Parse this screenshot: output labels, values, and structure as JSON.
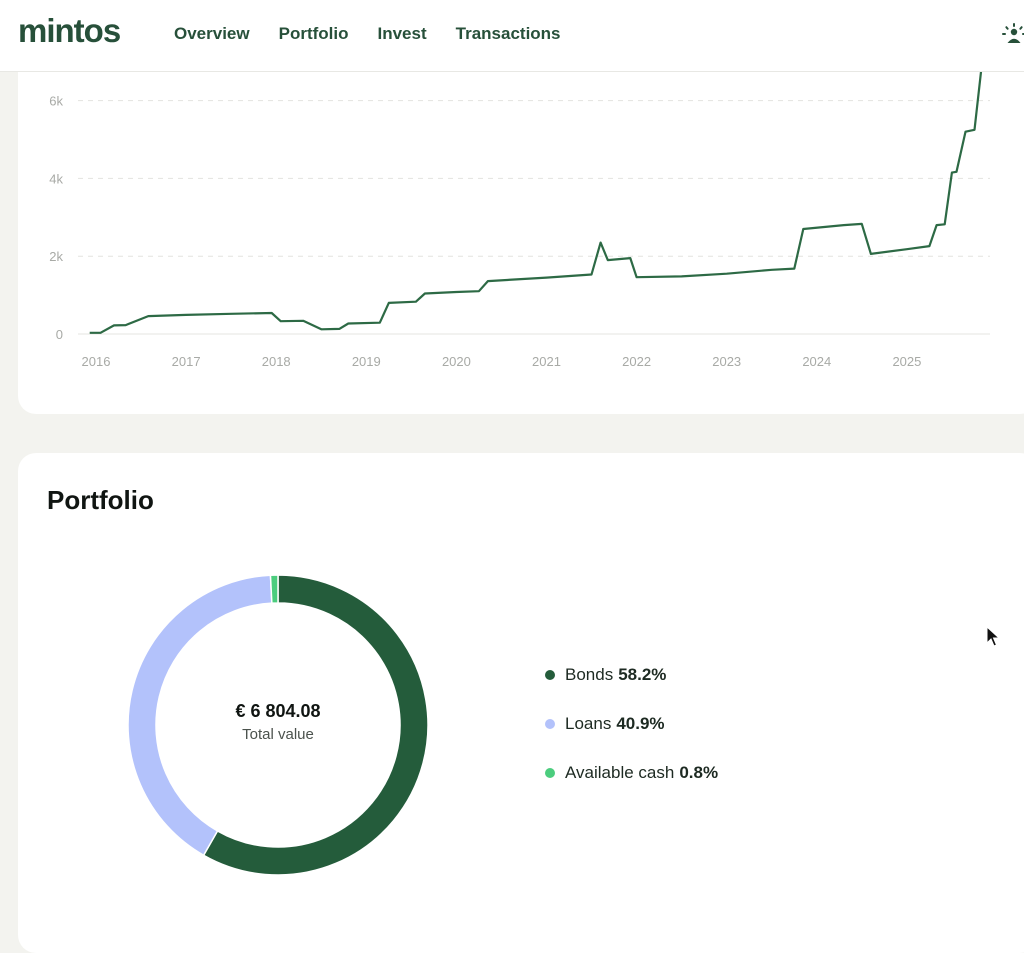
{
  "header": {
    "logo": "mintos",
    "nav": [
      "Overview",
      "Portfolio",
      "Invest",
      "Transactions"
    ],
    "right_icon": "sparkle-user-icon"
  },
  "chart_data": {
    "type": "line",
    "title": "",
    "xlabel": "",
    "ylabel": "",
    "ylim": [
      0,
      7000
    ],
    "yticks": [
      0,
      2000,
      4000,
      6000
    ],
    "ytick_labels": [
      "0",
      "2k",
      "4k",
      "6k"
    ],
    "xticks": [
      2016,
      2017,
      2018,
      2019,
      2020,
      2021,
      2022,
      2023,
      2024,
      2025
    ],
    "xtick_labels": [
      "2016",
      "2017",
      "2018",
      "2019",
      "2020",
      "2021",
      "2022",
      "2023",
      "2024",
      "2025"
    ],
    "grid": true,
    "color": "#2d6a45",
    "x": [
      2015.93,
      2016.05,
      2016.2,
      2016.33,
      2016.58,
      2017.0,
      2017.5,
      2017.95,
      2018.05,
      2018.3,
      2018.5,
      2018.7,
      2018.8,
      2019.15,
      2019.25,
      2019.55,
      2019.65,
      2020.0,
      2020.25,
      2020.35,
      2021.0,
      2021.5,
      2021.6,
      2021.68,
      2021.93,
      2022.0,
      2022.5,
      2023.0,
      2023.5,
      2023.75,
      2023.85,
      2024.3,
      2024.5,
      2024.6,
      2025.0,
      2025.25,
      2025.33,
      2025.42,
      2025.5,
      2025.55,
      2025.65,
      2025.75,
      2025.83
    ],
    "y": [
      30,
      30,
      220,
      230,
      460,
      490,
      520,
      540,
      330,
      340,
      120,
      130,
      270,
      290,
      800,
      830,
      1040,
      1080,
      1100,
      1360,
      1450,
      1530,
      2350,
      1900,
      1950,
      1460,
      1480,
      1550,
      1650,
      1680,
      2700,
      2800,
      2830,
      2060,
      2180,
      2260,
      2800,
      2820,
      4150,
      4170,
      5200,
      5250,
      6900
    ]
  },
  "portfolio": {
    "title": "Portfolio",
    "total_value": "€ 6 804.08",
    "total_label": "Total value",
    "segments": [
      {
        "name": "Bonds",
        "pct_label": "58.2%",
        "value": 58.2,
        "color": "#245c3b"
      },
      {
        "name": "Loans",
        "pct_label": "40.9%",
        "value": 40.9,
        "color": "#b3c2fb"
      },
      {
        "name": "Available cash",
        "pct_label": "0.8%",
        "value": 0.8,
        "color": "#4ccd7e"
      }
    ]
  }
}
